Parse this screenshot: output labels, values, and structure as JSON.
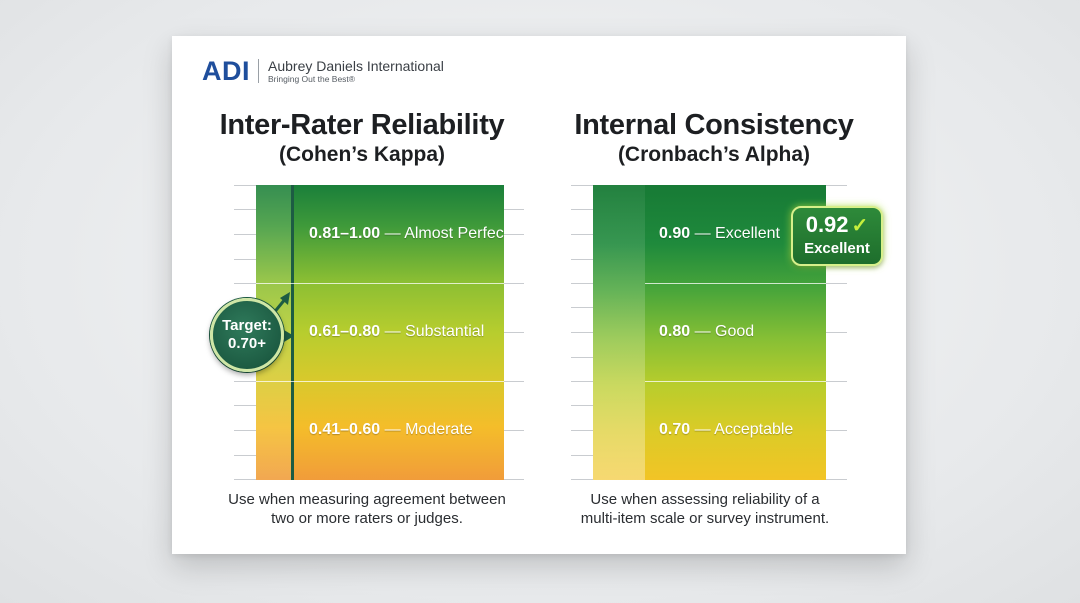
{
  "brand": {
    "logo_mark": "ADI",
    "name": "Aubrey Daniels International",
    "tagline": "Bringing Out the Best®"
  },
  "left": {
    "title": "Inter-Rater Reliability",
    "subtitle": "(Cohen’s Kappa)",
    "bands": [
      {
        "range": "0.81–1.00",
        "label": "Almost Perfect"
      },
      {
        "range": "0.61–0.80",
        "label": "Substantial"
      },
      {
        "range": "0.41–0.60",
        "label": "Moderate"
      }
    ],
    "target": {
      "line1": "Target:",
      "line2": "0.70+"
    },
    "caption_line1": "Use when measuring agreement between",
    "caption_line2": "two or more raters or judges."
  },
  "right": {
    "title": "Internal Consistency",
    "subtitle": "(Cronbach’s Alpha)",
    "bands": [
      {
        "range": "0.90",
        "label": "Excellent"
      },
      {
        "range": "0.80",
        "label": "Good"
      },
      {
        "range": "0.70",
        "label": "Acceptable"
      }
    ],
    "highlight": {
      "value": "0.92",
      "label": "Excellent"
    },
    "caption_line1": "Use when assessing reliability of a",
    "caption_line2": "multi-item scale or survey instrument."
  },
  "colors": {
    "brand_blue": "#1f4e9c",
    "top_green": "#1f8a3c",
    "mid_lime": "#a9c92e",
    "bottom_orange": "#f2a93a",
    "badge_green": "#1d5c43"
  }
}
